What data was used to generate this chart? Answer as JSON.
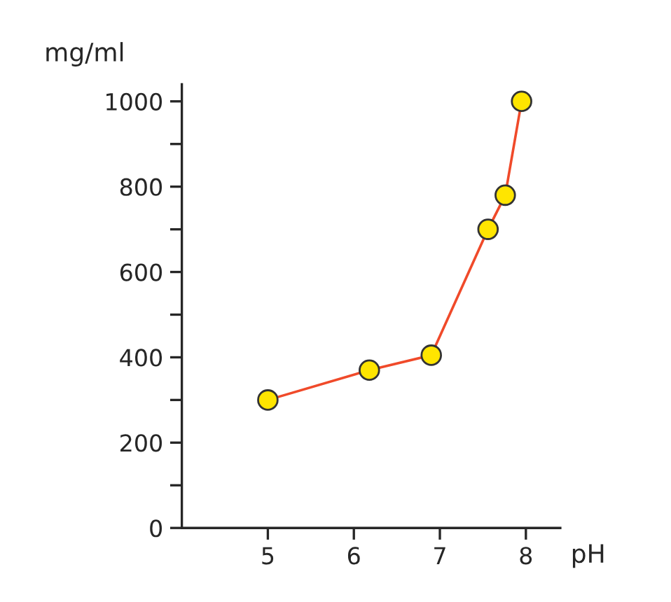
{
  "chart_data": {
    "type": "line",
    "xlabel": "pH",
    "ylabel": "mg/ml",
    "x": [
      5,
      6.18,
      6.9,
      7.56,
      7.76,
      7.95
    ],
    "series": [
      {
        "color": "#f04a2a",
        "values": [
          300,
          370,
          405,
          700,
          780,
          1000
        ]
      }
    ],
    "marker": "circle",
    "line_style": "solid",
    "grid": false,
    "legend": false,
    "xlim": [
      4,
      8.4
    ],
    "xticks": [
      5,
      6,
      7,
      8
    ],
    "ylim": [
      0,
      1040
    ],
    "yticks": [
      0,
      {
        "value": 100,
        "label": null
      },
      200,
      {
        "value": 300,
        "label": null
      },
      400,
      {
        "value": 500,
        "label": null
      },
      600,
      {
        "value": 700,
        "label": null
      },
      800,
      {
        "value": 900,
        "label": null
      },
      1000
    ]
  }
}
